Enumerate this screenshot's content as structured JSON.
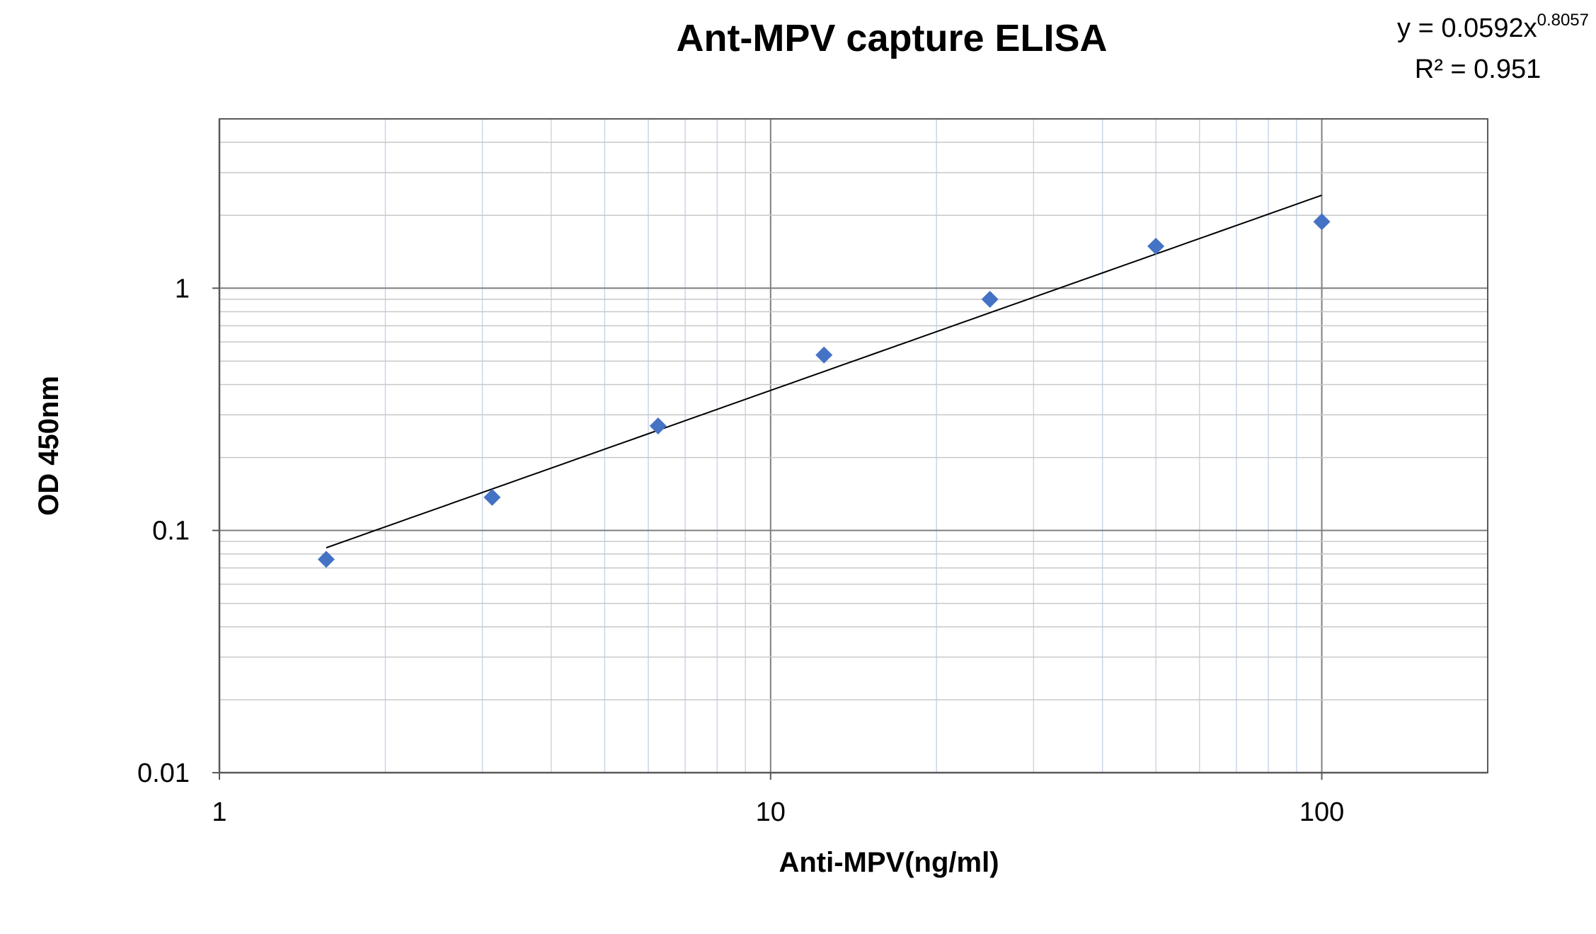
{
  "chart_data": {
    "type": "scatter",
    "title": "Ant-MPV capture ELISA",
    "xlabel": "Anti-MPV(ng/ml)",
    "ylabel": "OD 450nm",
    "x_scale": "log",
    "y_scale": "log",
    "xlim": [
      1,
      200
    ],
    "ylim": [
      0.01,
      5
    ],
    "x_tick_labels": [
      "1",
      "10",
      "100"
    ],
    "y_tick_labels": [
      "0.01",
      "0.1",
      "1"
    ],
    "grid": true,
    "legend": "none",
    "series": [
      {
        "color": "#4472C4",
        "marker": "diamond",
        "x": [
          1.5625,
          3.125,
          6.25,
          12.5,
          25,
          50,
          100
        ],
        "y": [
          0.076,
          0.137,
          0.27,
          0.53,
          0.9,
          1.49,
          1.88
        ]
      }
    ],
    "trendline": {
      "type": "power",
      "coefficient": 0.0592,
      "exponent": 0.8057,
      "x_range": [
        1.5625,
        100
      ],
      "color": "#000000",
      "equation_base": "y = 0.0592x",
      "equation_exponent": "0.8057",
      "r_squared_text": "R² = 0.951"
    }
  }
}
